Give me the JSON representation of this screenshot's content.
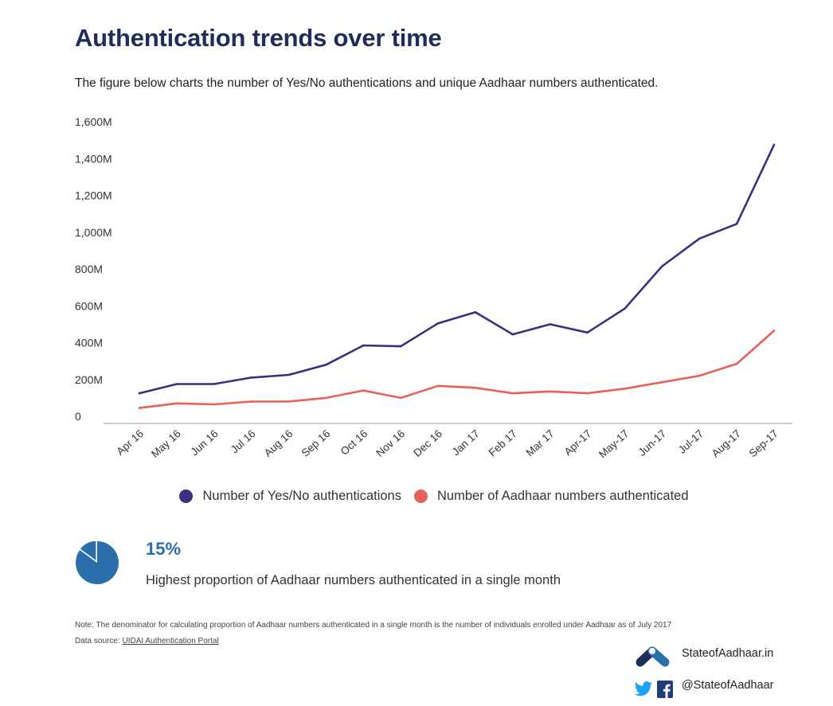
{
  "title": "Authentication trends over time",
  "subtitle": "The figure below charts the number of Yes/No authentications and unique Aadhaar numbers authenticated.",
  "chart_data": {
    "type": "line",
    "title": "Authentication trends over time",
    "xlabel": "",
    "ylabel": "",
    "ylim": [
      0,
      1600
    ],
    "y_unit": "M",
    "yticks": [
      "0",
      "200M",
      "400M",
      "600M",
      "800M",
      "1,000M",
      "1,200M",
      "1,400M",
      "1,600M"
    ],
    "categories": [
      "Apr 16",
      "May 16",
      "Jun 16",
      "Jul 16",
      "Aug 16",
      "Sep 16",
      "Oct 16",
      "Nov 16",
      "Dec 16",
      "Jan 17",
      "Feb 17",
      "Mar 17",
      "Apr-17",
      "May-17",
      "Jun-17",
      "Jul-17",
      "Aug-17",
      "Sep-17"
    ],
    "series": [
      {
        "name": "Number of Yes/No authentications",
        "color": "#3b2f80",
        "values": [
          125,
          175,
          175,
          210,
          225,
          280,
          385,
          380,
          505,
          565,
          445,
          500,
          455,
          585,
          815,
          965,
          1045,
          1475
        ]
      },
      {
        "name": "Number of Aadhaar numbers authenticated",
        "color": "#e8605a",
        "values": [
          45,
          70,
          65,
          80,
          80,
          100,
          140,
          100,
          165,
          155,
          125,
          135,
          125,
          150,
          185,
          220,
          285,
          465
        ]
      }
    ],
    "grid": false,
    "legend_position": "bottom-center"
  },
  "stat": {
    "value": "15%",
    "description": "Highest proportion of Aadhaar numbers authenticated in a single month",
    "pie_fraction": 0.15,
    "pie_color": "#2a6eab"
  },
  "note": "Note: The denominator for calculating proportion of Aadhaar numbers authenticated in a single month is the number of individuals enrolled under Aadhaar as of July 2017",
  "source": {
    "prefix": "Data source: ",
    "link": "UIDAI Authentication Portal"
  },
  "footer": {
    "site": "StateofAadhaar.in",
    "handle": "@StateofAadhaar",
    "logo_icon": "stateofaadhaar-logo-icon",
    "social_icons": [
      "twitter-icon",
      "facebook-icon"
    ]
  }
}
